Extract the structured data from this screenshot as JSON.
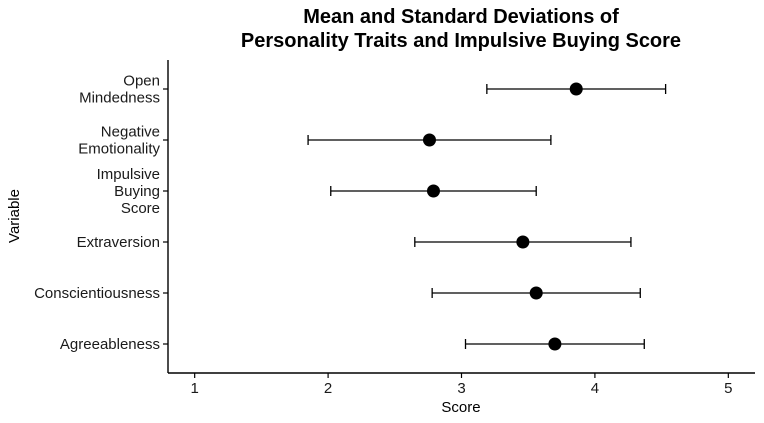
{
  "chart_data": {
    "type": "scatter",
    "title": [
      "Mean and Standard Deviations of",
      "Personality Traits and Impulsive Buying Score"
    ],
    "xlabel": "Score",
    "ylabel": "Variable",
    "xlim": [
      0.8,
      5.2
    ],
    "xticks": [
      1,
      2,
      3,
      4,
      5
    ],
    "grid": false,
    "categories": [
      {
        "label": [
          "Open",
          "Mindedness"
        ],
        "mean": 3.86,
        "sd": 0.67
      },
      {
        "label": [
          "Negative",
          "Emotionality"
        ],
        "mean": 2.76,
        "sd": 0.91
      },
      {
        "label": [
          "Impulsive",
          "Buying",
          "Score"
        ],
        "mean": 2.79,
        "sd": 0.77
      },
      {
        "label": [
          "Extraversion"
        ],
        "mean": 3.46,
        "sd": 0.81
      },
      {
        "label": [
          "Conscientiousness"
        ],
        "mean": 3.56,
        "sd": 0.78
      },
      {
        "label": [
          "Agreeableness"
        ],
        "mean": 3.7,
        "sd": 0.67
      }
    ]
  }
}
